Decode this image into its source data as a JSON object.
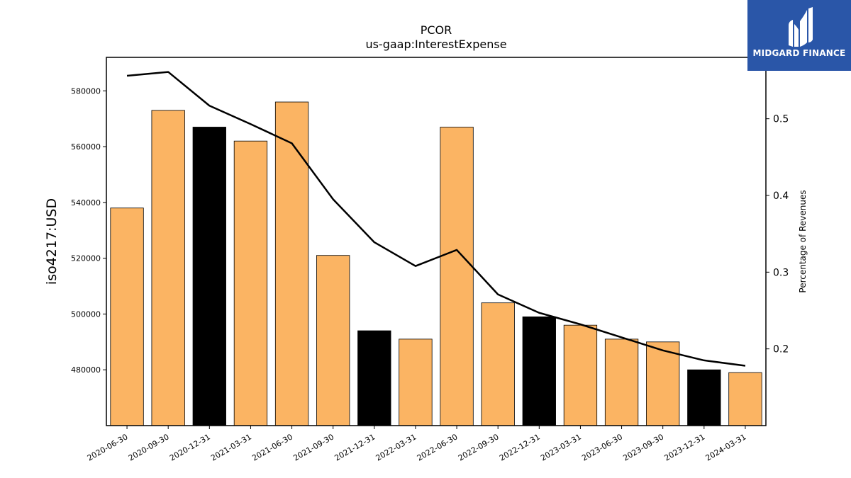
{
  "chart_data": {
    "type": "bar",
    "title": "PCOR",
    "subtitle": "us-gaap:InterestExpense",
    "ylabel": "iso4217:USD",
    "y2label": "Percentage of Revenues",
    "categories": [
      "2020-06-30",
      "2020-09-30",
      "2020-12-31",
      "2021-03-31",
      "2021-06-30",
      "2021-09-30",
      "2021-12-31",
      "2022-03-31",
      "2022-06-30",
      "2022-09-30",
      "2022-12-31",
      "2023-03-31",
      "2023-06-30",
      "2023-09-30",
      "2023-12-31",
      "2024-03-31"
    ],
    "values": [
      538000,
      573000,
      567000,
      562000,
      576000,
      521000,
      494000,
      491000,
      567000,
      504000,
      499000,
      496000,
      491000,
      490000,
      480000,
      479000
    ],
    "bar_colors": [
      "#fbb463",
      "#fbb463",
      "#000000",
      "#fbb463",
      "#fbb463",
      "#fbb463",
      "#000000",
      "#fbb463",
      "#fbb463",
      "#fbb463",
      "#000000",
      "#fbb463",
      "#fbb463",
      "#fbb463",
      "#000000",
      "#fbb463"
    ],
    "ylim": [
      460000,
      592000
    ],
    "yticks": [
      480000,
      500000,
      520000,
      540000,
      560000,
      580000
    ],
    "line_series": {
      "values": [
        0.556,
        0.561,
        0.517,
        0.493,
        0.468,
        0.395,
        0.339,
        0.308,
        0.329,
        0.271,
        0.247,
        0.232,
        0.215,
        0.198,
        0.185,
        0.178
      ],
      "color": "#000000"
    },
    "y2lim": [
      0.1,
      0.58
    ],
    "y2ticks": [
      0.2,
      0.3,
      0.4,
      0.5
    ],
    "grid": false
  },
  "logo": {
    "text": "MIDGARD FINANCE",
    "bg_color": "#2a56a8"
  }
}
